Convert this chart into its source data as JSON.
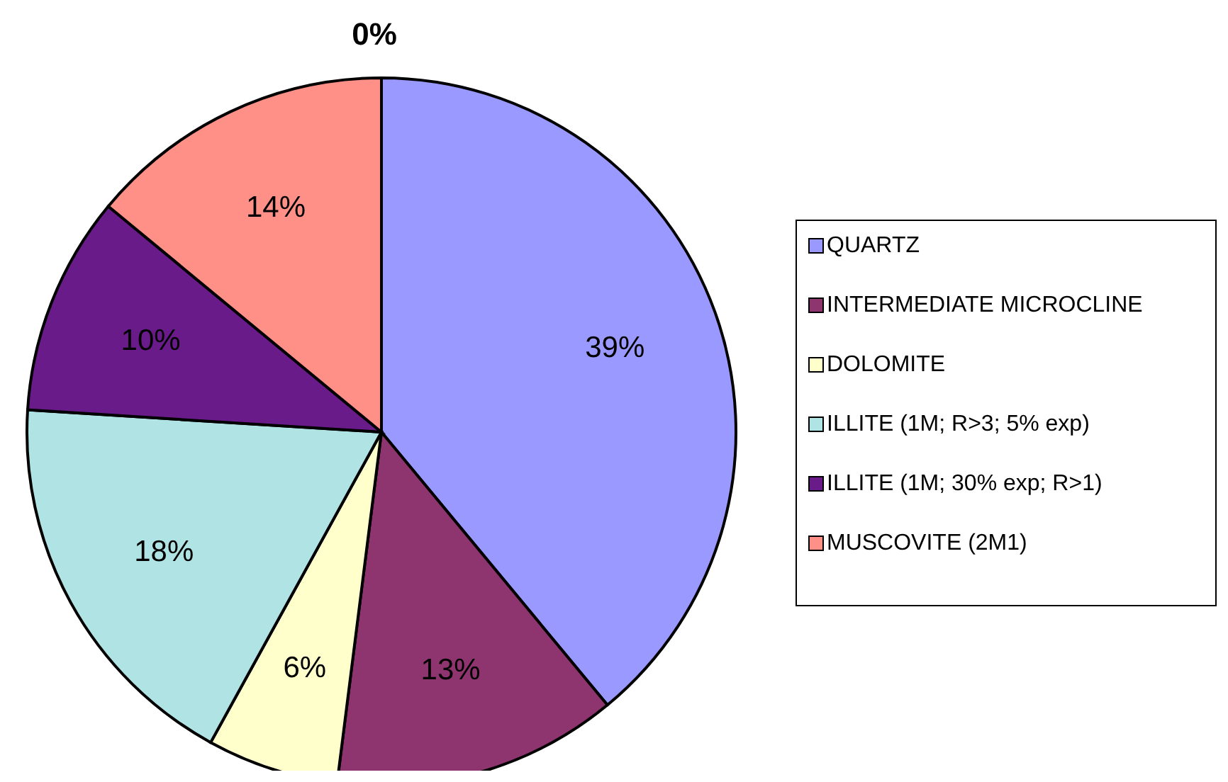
{
  "chart_data": {
    "type": "pie",
    "title": "0%",
    "categories": [
      "QUARTZ",
      "INTERMEDIATE MICROCLINE",
      "DOLOMITE",
      "ILLITE (1M; R>3; 5% exp)",
      "ILLITE (1M; 30% exp; R>1)",
      "MUSCOVITE (2M1)"
    ],
    "values": [
      39,
      13,
      6,
      18,
      10,
      14
    ],
    "colors": [
      "#9999ff",
      "#8e3570",
      "#ffffcc",
      "#b0e4e4",
      "#6a1b8a",
      "#ff9088"
    ],
    "value_labels": [
      "39%",
      "13%",
      "6%",
      "18%",
      "10%",
      "14%"
    ],
    "legend": "right"
  }
}
